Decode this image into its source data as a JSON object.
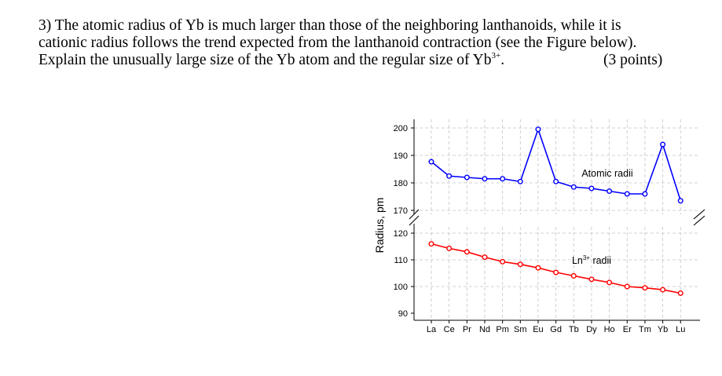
{
  "question": {
    "line1": "3) The atomic radius of Yb is much larger than those of the neighboring lanthanoids, while it is",
    "line2": "cationic radius follows the trend expected from the lanthanoid contraction (see the Figure below).",
    "line3_pre": "Explain the unusually large size of the Yb atom and the regular size of Yb",
    "line3_sup": "3+",
    "line3_post": ".",
    "points": "(3 points)"
  },
  "chart_data": {
    "type": "line",
    "ylabel": "Radius, pm",
    "categories": [
      "La",
      "Ce",
      "Pr",
      "Nd",
      "Pm",
      "Sm",
      "Eu",
      "Gd",
      "Tb",
      "Dy",
      "Ho",
      "Er",
      "Tm",
      "Yb",
      "Lu"
    ],
    "upper_axis": {
      "ylim": [
        170,
        200
      ],
      "ticks": [
        170,
        180,
        190,
        200
      ]
    },
    "lower_axis": {
      "ylim": [
        90,
        120
      ],
      "ticks": [
        90,
        100,
        110,
        120
      ]
    },
    "broken_axis": true,
    "grid": true,
    "series": [
      {
        "name": "Atomic radii",
        "color": "#0000ff",
        "axis": "upper",
        "values": [
          187.7,
          182.5,
          182.0,
          181.5,
          181.5,
          180.5,
          199.5,
          180.5,
          178.5,
          178.0,
          177.0,
          176.0,
          176.0,
          194.0,
          173.5
        ]
      },
      {
        "name_prefix": "Ln",
        "name_sup": "3+",
        "name_suffix": " radii",
        "color": "#ff0000",
        "axis": "lower",
        "values": [
          116.0,
          114.3,
          113.0,
          111.0,
          109.3,
          108.3,
          107.0,
          105.3,
          104.0,
          102.7,
          101.5,
          100.0,
          99.5,
          98.8,
          97.5
        ]
      }
    ]
  }
}
